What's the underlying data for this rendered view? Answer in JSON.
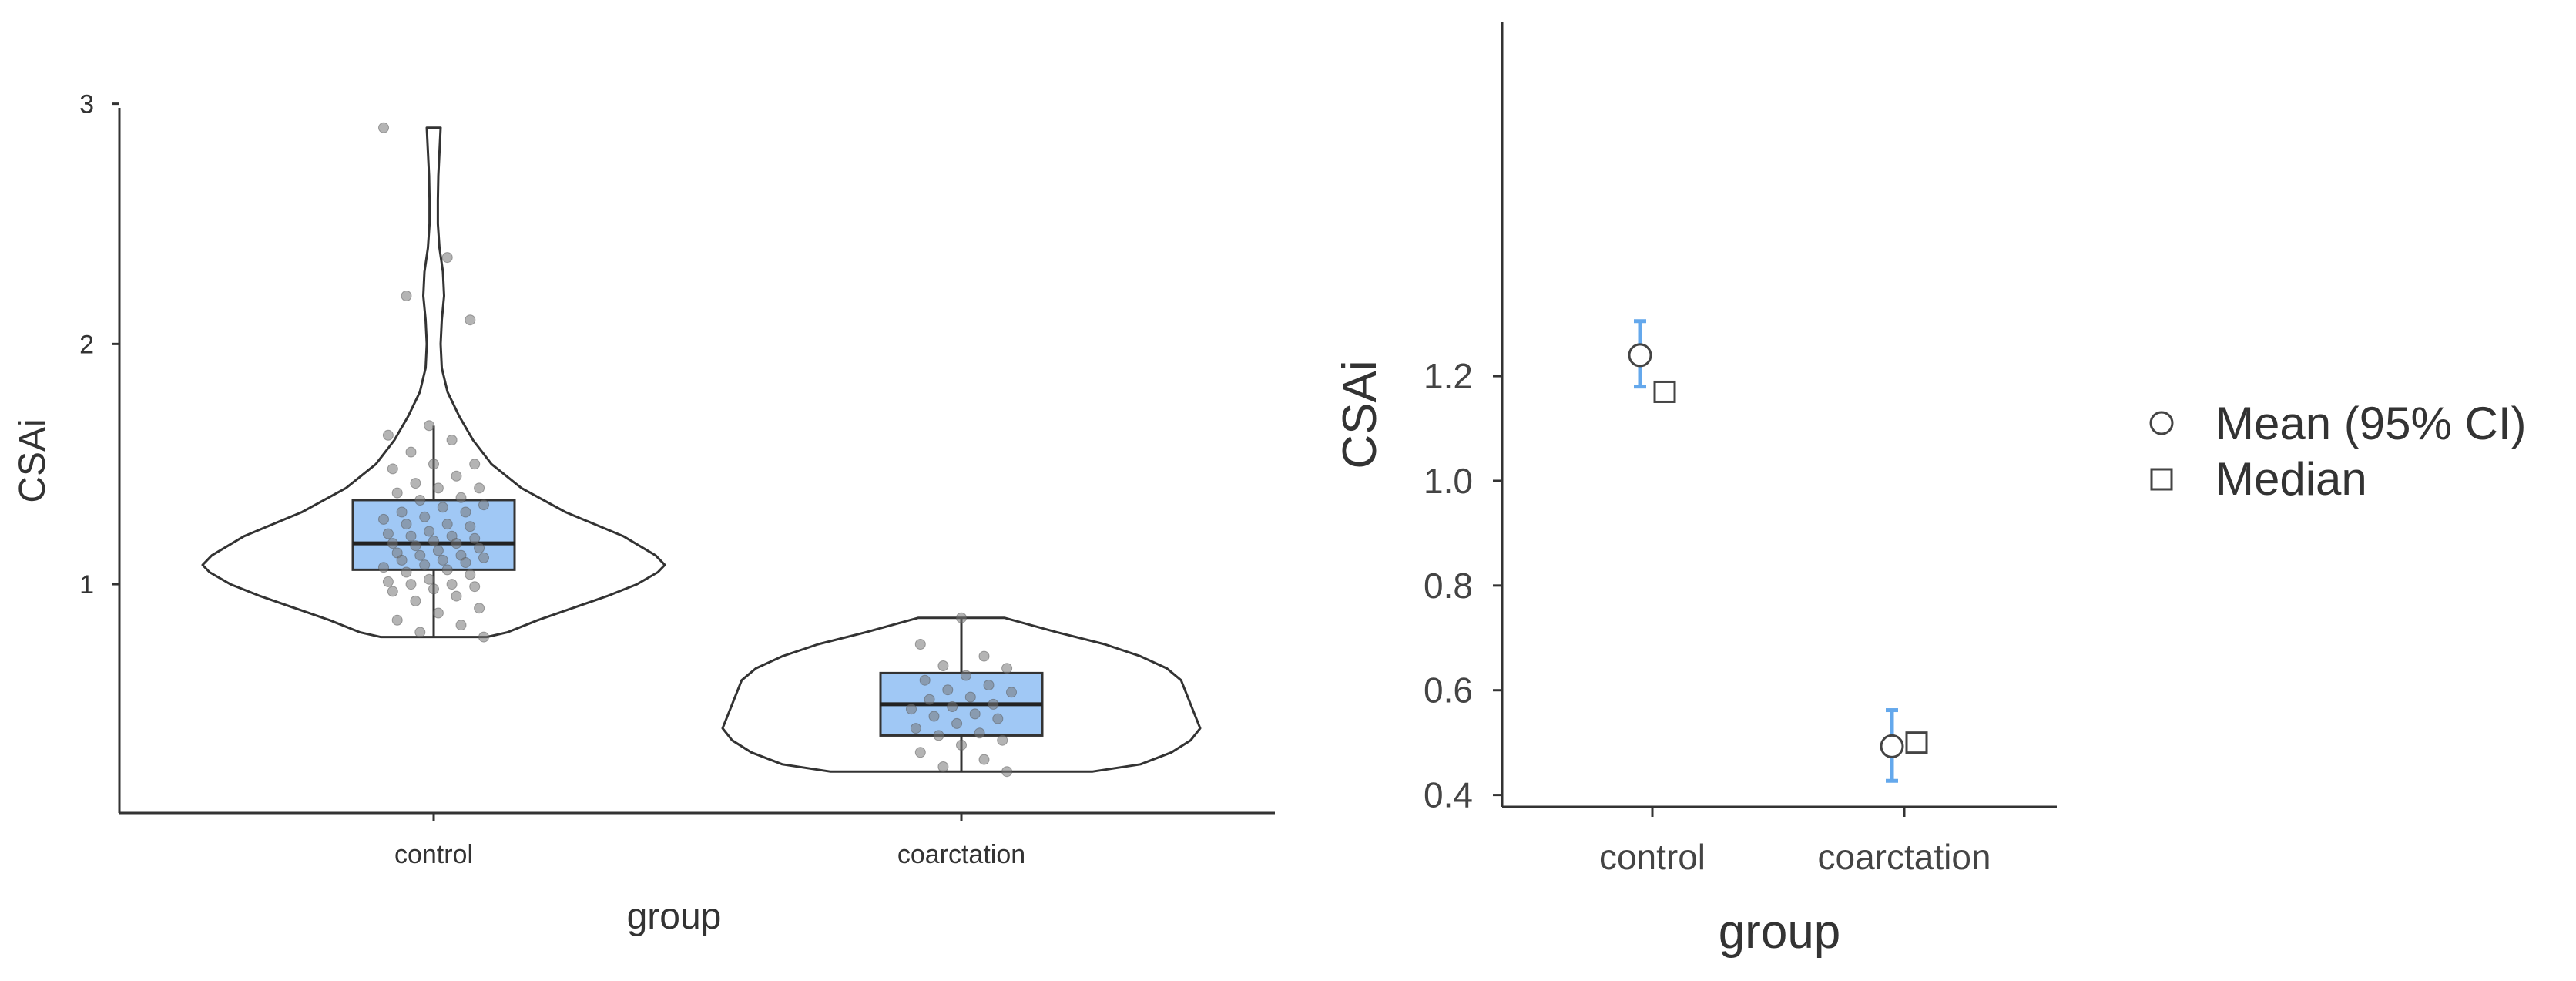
{
  "chart_data": [
    {
      "type": "violin_box",
      "xlabel": "group",
      "ylabel": "CSAi",
      "categories": [
        "control",
        "coarctation"
      ],
      "y_ticks": [
        1,
        2,
        3
      ],
      "ylim": [
        0.1,
        3.05
      ],
      "grid": false,
      "colors": {
        "box_fill": "#a0c8f5",
        "outline": "#333333",
        "points": "#777777"
      },
      "groups": [
        {
          "name": "control",
          "min": 0.78,
          "q1": 1.06,
          "median": 1.17,
          "q3": 1.35,
          "max": 1.66,
          "violin_top": 2.9,
          "violin_bottom": 0.78,
          "density": [
            [
              0.78,
              0.23
            ],
            [
              0.8,
              0.32
            ],
            [
              0.85,
              0.45
            ],
            [
              0.9,
              0.6
            ],
            [
              0.95,
              0.75
            ],
            [
              1.0,
              0.88
            ],
            [
              1.05,
              0.97
            ],
            [
              1.08,
              1.0
            ],
            [
              1.12,
              0.96
            ],
            [
              1.2,
              0.82
            ],
            [
              1.3,
              0.57
            ],
            [
              1.4,
              0.38
            ],
            [
              1.5,
              0.25
            ],
            [
              1.6,
              0.17
            ],
            [
              1.7,
              0.11
            ],
            [
              1.8,
              0.06
            ],
            [
              1.9,
              0.035
            ],
            [
              2.0,
              0.03
            ],
            [
              2.1,
              0.035
            ],
            [
              2.2,
              0.045
            ],
            [
              2.3,
              0.04
            ],
            [
              2.4,
              0.025
            ],
            [
              2.5,
              0.018
            ],
            [
              2.6,
              0.018
            ],
            [
              2.7,
              0.02
            ],
            [
              2.8,
              0.025
            ],
            [
              2.9,
              0.03
            ]
          ],
          "points": [
            2.9,
            2.36,
            2.2,
            2.1,
            1.66,
            1.62,
            1.6,
            1.55,
            1.5,
            1.5,
            1.48,
            1.45,
            1.42,
            1.4,
            1.4,
            1.38,
            1.36,
            1.35,
            1.33,
            1.32,
            1.3,
            1.3,
            1.28,
            1.27,
            1.25,
            1.25,
            1.24,
            1.22,
            1.21,
            1.2,
            1.2,
            1.19,
            1.18,
            1.17,
            1.17,
            1.16,
            1.15,
            1.14,
            1.13,
            1.12,
            1.12,
            1.11,
            1.1,
            1.1,
            1.09,
            1.08,
            1.07,
            1.06,
            1.05,
            1.04,
            1.02,
            1.01,
            1.0,
            1.0,
            0.99,
            0.98,
            0.97,
            0.95,
            0.93,
            0.9,
            0.88,
            0.85,
            0.83,
            0.8,
            0.78
          ]
        },
        {
          "name": "coarctation",
          "min": 0.22,
          "q1": 0.37,
          "median": 0.5,
          "q3": 0.63,
          "max": 0.86,
          "violin_top": 0.86,
          "violin_bottom": 0.22,
          "density": [
            [
              0.22,
              0.55
            ],
            [
              0.25,
              0.75
            ],
            [
              0.3,
              0.88
            ],
            [
              0.35,
              0.96
            ],
            [
              0.4,
              1.0
            ],
            [
              0.45,
              0.98
            ],
            [
              0.5,
              0.96
            ],
            [
              0.55,
              0.94
            ],
            [
              0.6,
              0.92
            ],
            [
              0.65,
              0.86
            ],
            [
              0.7,
              0.75
            ],
            [
              0.75,
              0.6
            ],
            [
              0.8,
              0.4
            ],
            [
              0.86,
              0.18
            ]
          ],
          "points": [
            0.86,
            0.75,
            0.7,
            0.66,
            0.65,
            0.62,
            0.6,
            0.58,
            0.56,
            0.55,
            0.53,
            0.52,
            0.5,
            0.49,
            0.48,
            0.46,
            0.45,
            0.44,
            0.42,
            0.4,
            0.38,
            0.37,
            0.35,
            0.33,
            0.3,
            0.27,
            0.24,
            0.22
          ]
        }
      ]
    },
    {
      "type": "scatter",
      "xlabel": "group",
      "ylabel": "CSAi",
      "categories": [
        "control",
        "coarctation"
      ],
      "y_ticks": [
        0.4,
        0.6,
        0.8,
        1.0,
        1.2
      ],
      "y_tick_labels": [
        "0.4",
        "0.6",
        "0.8",
        "1.0",
        "1.2"
      ],
      "ylim": [
        0.38,
        1.35
      ],
      "grid": false,
      "legend_position": "right",
      "legend": [
        {
          "label": "Mean (95% CI)",
          "marker": "circle"
        },
        {
          "label": "Median",
          "marker": "square"
        }
      ],
      "colors": {
        "ci": "#64a8ec",
        "marker_stroke": "#444444"
      },
      "series": [
        {
          "name": "Mean (95% CI)",
          "values": [
            1.24,
            0.493
          ],
          "ci_low": [
            1.18,
            0.427
          ],
          "ci_high": [
            1.305,
            0.562
          ]
        },
        {
          "name": "Median",
          "values": [
            1.17,
            0.5
          ]
        }
      ]
    }
  ]
}
